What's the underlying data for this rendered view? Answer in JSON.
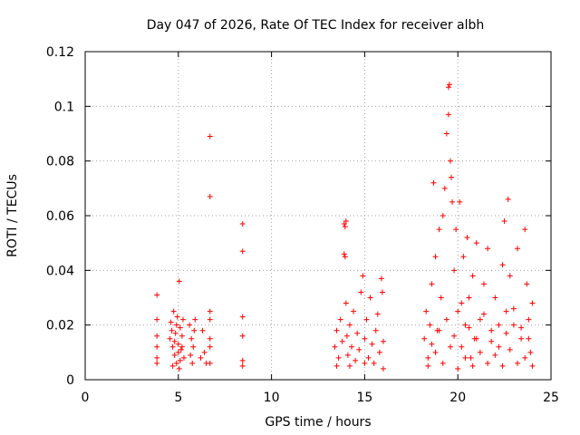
{
  "chart_data": {
    "type": "scatter",
    "title": "Day 047 of 2026, Rate Of TEC Index for receiver albh",
    "xlabel": "GPS time / hours",
    "ylabel": "ROTI / TECUs",
    "xlim": [
      0,
      25
    ],
    "ylim": [
      0,
      0.12
    ],
    "xticks": [
      0,
      5,
      10,
      15,
      20,
      25
    ],
    "xtick_labels": [
      "0",
      "5",
      "10",
      "15",
      "20",
      "25"
    ],
    "yticks": [
      0,
      0.02,
      0.04,
      0.06,
      0.08,
      0.1,
      0.12
    ],
    "ytick_labels": [
      "0",
      "0.02",
      "0.04",
      "0.06",
      "0.08",
      "0.1",
      "0.12"
    ],
    "grid": true,
    "marker": "plus",
    "marker_color": "#ff0000",
    "series": [
      {
        "points": [
          [
            3.85,
            0.031
          ],
          [
            3.85,
            0.022
          ],
          [
            3.85,
            0.016
          ],
          [
            3.85,
            0.012
          ],
          [
            3.85,
            0.008
          ],
          [
            3.85,
            0.006
          ],
          [
            4.55,
            0.015
          ],
          [
            4.6,
            0.021
          ],
          [
            4.65,
            0.018
          ],
          [
            4.7,
            0.012
          ],
          [
            4.75,
            0.025
          ],
          [
            4.8,
            0.009
          ],
          [
            4.85,
            0.017
          ],
          [
            4.9,
            0.006
          ],
          [
            4.95,
            0.023
          ],
          [
            5.0,
            0.013
          ],
          [
            5.05,
            0.036
          ],
          [
            5.05,
            0.004
          ],
          [
            5.1,
            0.019
          ],
          [
            5.15,
            0.011
          ],
          [
            5.2,
            0.016
          ],
          [
            5.25,
            0.022
          ],
          [
            5.3,
            0.008
          ],
          [
            4.7,
            0.005
          ],
          [
            4.8,
            0.014
          ],
          [
            4.9,
            0.02
          ],
          [
            5.0,
            0.01
          ],
          [
            5.1,
            0.007
          ],
          [
            5.2,
            0.012
          ],
          [
            5.6,
            0.02
          ],
          [
            5.65,
            0.009
          ],
          [
            5.7,
            0.015
          ],
          [
            5.75,
            0.006
          ],
          [
            5.8,
            0.012
          ],
          [
            5.85,
            0.018
          ],
          [
            5.9,
            0.022
          ],
          [
            6.2,
            0.008
          ],
          [
            6.3,
            0.018
          ],
          [
            6.4,
            0.01
          ],
          [
            6.5,
            0.006
          ],
          [
            6.7,
            0.089
          ],
          [
            6.7,
            0.067
          ],
          [
            6.7,
            0.025
          ],
          [
            6.7,
            0.022
          ],
          [
            6.7,
            0.015
          ],
          [
            6.7,
            0.012
          ],
          [
            6.7,
            0.006
          ],
          [
            8.45,
            0.057
          ],
          [
            8.45,
            0.047
          ],
          [
            8.45,
            0.023
          ],
          [
            8.45,
            0.016
          ],
          [
            8.45,
            0.007
          ],
          [
            8.45,
            0.005
          ],
          [
            13.4,
            0.012
          ],
          [
            13.5,
            0.018
          ],
          [
            13.6,
            0.008
          ],
          [
            13.7,
            0.022
          ],
          [
            13.8,
            0.014
          ],
          [
            13.9,
            0.046
          ],
          [
            13.9,
            0.057
          ],
          [
            13.95,
            0.056
          ],
          [
            14.0,
            0.058
          ],
          [
            13.95,
            0.045
          ],
          [
            14.0,
            0.028
          ],
          [
            14.05,
            0.016
          ],
          [
            14.1,
            0.009
          ],
          [
            14.2,
            0.02
          ],
          [
            14.3,
            0.012
          ],
          [
            14.4,
            0.025
          ],
          [
            14.5,
            0.007
          ],
          [
            14.6,
            0.017
          ],
          [
            14.7,
            0.011
          ],
          [
            14.8,
            0.032
          ],
          [
            14.9,
            0.038
          ],
          [
            15.0,
            0.015
          ],
          [
            15.1,
            0.022
          ],
          [
            15.2,
            0.008
          ],
          [
            15.3,
            0.03
          ],
          [
            15.4,
            0.013
          ],
          [
            15.5,
            0.006
          ],
          [
            15.6,
            0.018
          ],
          [
            15.7,
            0.024
          ],
          [
            15.8,
            0.01
          ],
          [
            15.9,
            0.037
          ],
          [
            15.95,
            0.032
          ],
          [
            16.0,
            0.014
          ],
          [
            16.0,
            0.004
          ],
          [
            13.5,
            0.005
          ],
          [
            14.2,
            0.005
          ],
          [
            15.0,
            0.006
          ],
          [
            18.2,
            0.015
          ],
          [
            18.3,
            0.025
          ],
          [
            18.4,
            0.008
          ],
          [
            18.5,
            0.02
          ],
          [
            18.6,
            0.035
          ],
          [
            18.7,
            0.072
          ],
          [
            18.8,
            0.045
          ],
          [
            18.9,
            0.018
          ],
          [
            19.0,
            0.055
          ],
          [
            19.1,
            0.03
          ],
          [
            19.2,
            0.06
          ],
          [
            19.3,
            0.07
          ],
          [
            19.4,
            0.09
          ],
          [
            19.5,
            0.107
          ],
          [
            19.55,
            0.108
          ],
          [
            19.5,
            0.097
          ],
          [
            19.6,
            0.08
          ],
          [
            19.65,
            0.074
          ],
          [
            19.7,
            0.065
          ],
          [
            19.8,
            0.04
          ],
          [
            19.9,
            0.055
          ],
          [
            20.0,
            0.025
          ],
          [
            20.1,
            0.065
          ],
          [
            20.2,
            0.012
          ],
          [
            20.3,
            0.045
          ],
          [
            20.4,
            0.02
          ],
          [
            20.5,
            0.052
          ],
          [
            20.6,
            0.03
          ],
          [
            20.7,
            0.008
          ],
          [
            20.8,
            0.038
          ],
          [
            20.9,
            0.015
          ],
          [
            21.0,
            0.05
          ],
          [
            21.2,
            0.022
          ],
          [
            21.4,
            0.035
          ],
          [
            21.6,
            0.048
          ],
          [
            21.8,
            0.018
          ],
          [
            22.0,
            0.03
          ],
          [
            22.2,
            0.012
          ],
          [
            22.4,
            0.042
          ],
          [
            22.5,
            0.058
          ],
          [
            22.6,
            0.025
          ],
          [
            22.7,
            0.066
          ],
          [
            22.8,
            0.038
          ],
          [
            23.0,
            0.02
          ],
          [
            23.2,
            0.048
          ],
          [
            23.4,
            0.015
          ],
          [
            23.6,
            0.055
          ],
          [
            23.7,
            0.035
          ],
          [
            23.8,
            0.022
          ],
          [
            23.9,
            0.01
          ],
          [
            24.0,
            0.028
          ],
          [
            18.4,
            0.005
          ],
          [
            18.8,
            0.01
          ],
          [
            19.2,
            0.006
          ],
          [
            19.6,
            0.012
          ],
          [
            20.0,
            0.004
          ],
          [
            20.4,
            0.008
          ],
          [
            20.8,
            0.005
          ],
          [
            21.2,
            0.01
          ],
          [
            21.6,
            0.006
          ],
          [
            22.0,
            0.009
          ],
          [
            22.4,
            0.005
          ],
          [
            22.8,
            0.011
          ],
          [
            23.2,
            0.006
          ],
          [
            23.6,
            0.008
          ],
          [
            24.0,
            0.005
          ],
          [
            18.6,
            0.013
          ],
          [
            19.0,
            0.018
          ],
          [
            19.4,
            0.022
          ],
          [
            19.8,
            0.016
          ],
          [
            20.2,
            0.028
          ],
          [
            20.6,
            0.019
          ],
          [
            21.0,
            0.015
          ],
          [
            21.4,
            0.024
          ],
          [
            21.8,
            0.014
          ],
          [
            22.2,
            0.02
          ],
          [
            22.6,
            0.017
          ],
          [
            23.0,
            0.026
          ],
          [
            23.4,
            0.019
          ],
          [
            23.8,
            0.015
          ]
        ]
      }
    ]
  }
}
